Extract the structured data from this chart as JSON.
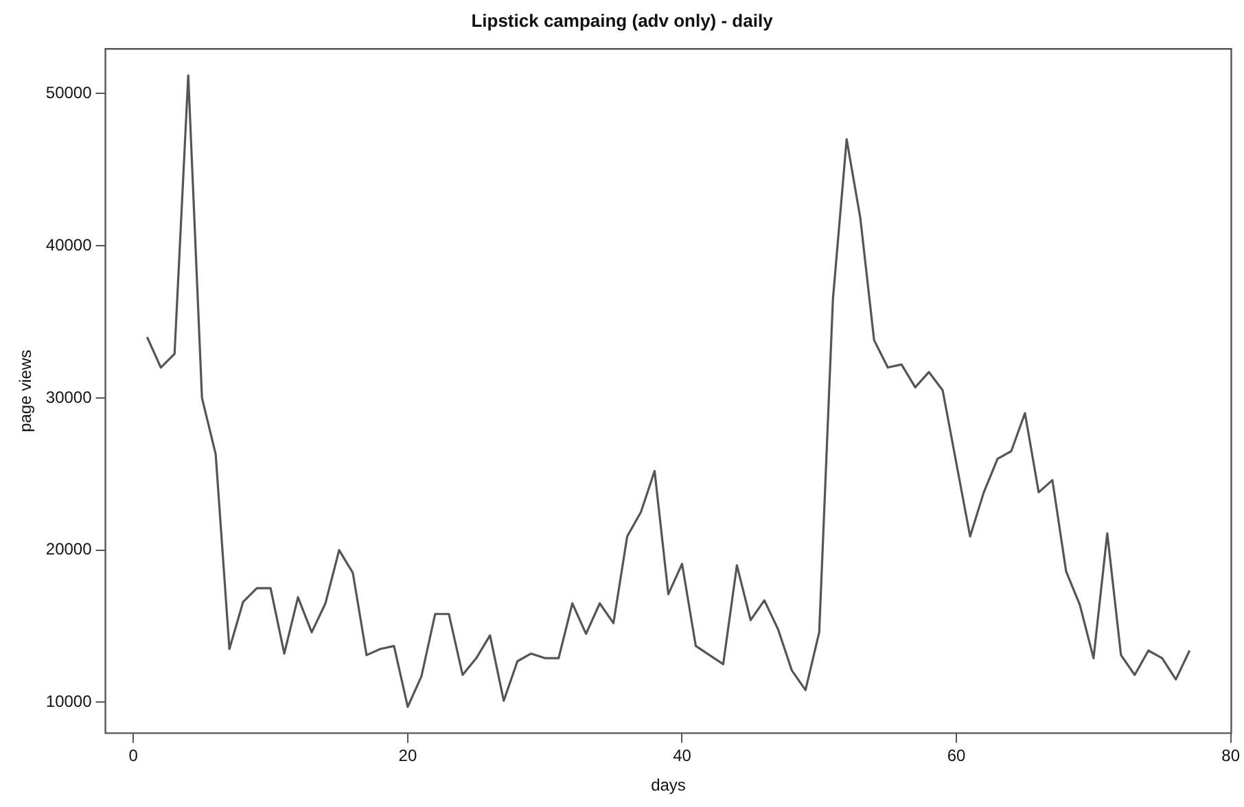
{
  "chart_data": {
    "type": "line",
    "title": "Lipstick campaing (adv only) - daily",
    "xlabel": "days",
    "ylabel": "page views",
    "x": [
      1,
      2,
      3,
      4,
      5,
      6,
      7,
      8,
      9,
      10,
      11,
      12,
      13,
      14,
      15,
      16,
      17,
      18,
      19,
      20,
      21,
      22,
      23,
      24,
      25,
      26,
      27,
      28,
      29,
      30,
      31,
      32,
      33,
      34,
      35,
      36,
      37,
      38,
      39,
      40,
      41,
      42,
      43,
      44,
      45,
      46,
      47,
      48,
      49,
      50,
      51,
      52,
      53,
      54,
      55,
      56,
      57,
      58,
      59,
      60,
      61,
      62,
      63,
      64,
      65,
      66,
      67,
      68,
      69,
      70,
      71,
      72,
      73,
      74,
      75,
      76,
      77
    ],
    "series": [
      {
        "color": "#555555",
        "values": [
          34000,
          32000,
          32900,
          51200,
          30000,
          26300,
          13500,
          16600,
          17500,
          17500,
          13200,
          16900,
          14600,
          16500,
          20000,
          18500,
          13100,
          13500,
          13700,
          9700,
          11700,
          15800,
          15800,
          11800,
          12900,
          14400,
          10100,
          12700,
          13200,
          12900,
          12900,
          16500,
          14500,
          16500,
          15200,
          20900,
          22500,
          25200,
          17100,
          19100,
          13700,
          13100,
          12500,
          19000,
          15400,
          16700,
          14800,
          12100,
          10800,
          14600,
          36500,
          47000,
          41800,
          33800,
          32000,
          32200,
          30700,
          31700,
          30500,
          25700,
          20900,
          23800,
          26000,
          26500,
          29000,
          23800,
          24600,
          18600,
          16400,
          12900,
          21100,
          13100,
          11800,
          13400,
          12900,
          11500,
          13400
        ]
      }
    ],
    "xlim": [
      -2.04,
      80.04
    ],
    "ylim": [
      7970,
      52940
    ],
    "xticks": [
      0,
      20,
      40,
      60,
      80
    ],
    "yticks": [
      10000,
      20000,
      30000,
      40000,
      50000
    ],
    "grid": false,
    "legend": false,
    "marker": "none",
    "line_style": "solid"
  }
}
